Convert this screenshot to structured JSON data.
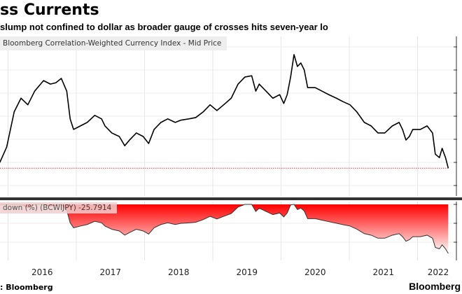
{
  "header": {
    "title": "ss Currents",
    "subtitle": "slump not confined to dollar as broader gauge of crosses hits seven-year lo"
  },
  "footer": {
    "source": ": Bloomberg",
    "brand": "Bloomberg"
  },
  "chart_data": [
    {
      "type": "line",
      "legend": "Bloomberg Correlation-Weighted Currency Index - Mid Price",
      "color": "#000000",
      "reference_line": {
        "style": "dotted",
        "color": "#e03030",
        "value": 74.2
      },
      "grid": true,
      "x_ticks": [
        "2016",
        "2017",
        "2018",
        "2019",
        "2020",
        "2021",
        "2022"
      ],
      "x": [
        2015.88,
        2015.98,
        2016.09,
        2016.19,
        2016.29,
        2016.39,
        2016.52,
        2016.62,
        2016.7,
        2016.78,
        2016.86,
        2016.91,
        2016.96,
        2017.06,
        2017.16,
        2017.27,
        2017.37,
        2017.42,
        2017.52,
        2017.63,
        2017.71,
        2017.78,
        2017.88,
        2017.98,
        2018.06,
        2018.14,
        2018.24,
        2018.34,
        2018.45,
        2018.53,
        2018.65,
        2018.75,
        2018.86,
        2018.96,
        2019.06,
        2019.16,
        2019.27,
        2019.37,
        2019.47,
        2019.57,
        2019.63,
        2019.68,
        2019.78,
        2019.88,
        2019.98,
        2020.04,
        2020.09,
        2020.14,
        2020.19,
        2020.24,
        2020.29,
        2020.34,
        2020.39,
        2020.5,
        2020.6,
        2020.7,
        2020.81,
        2020.91,
        2021.01,
        2021.11,
        2021.22,
        2021.32,
        2021.42,
        2021.52,
        2021.63,
        2021.73,
        2021.78,
        2021.83,
        2021.88,
        2021.93,
        2022.04,
        2022.14,
        2022.22,
        2022.26,
        2022.32,
        2022.36,
        2022.41,
        2022.45
      ],
      "values": [
        75.5,
        79.0,
        87.0,
        90.1,
        88.6,
        91.7,
        94.1,
        93.3,
        93.6,
        94.6,
        91.7,
        85.4,
        83.0,
        83.8,
        84.6,
        86.2,
        85.4,
        83.8,
        82.2,
        81.4,
        79.3,
        80.6,
        82.2,
        81.4,
        79.8,
        83.0,
        84.6,
        85.4,
        84.6,
        85.1,
        85.4,
        85.7,
        87.0,
        88.6,
        87.3,
        88.6,
        90.1,
        93.3,
        94.9,
        95.2,
        91.7,
        93.3,
        91.7,
        90.1,
        90.9,
        88.9,
        90.9,
        94.9,
        100.0,
        97.3,
        98.1,
        96.5,
        92.5,
        92.5,
        91.7,
        90.9,
        90.1,
        89.3,
        88.6,
        87.0,
        84.6,
        83.8,
        82.2,
        82.2,
        83.8,
        84.6,
        83.0,
        80.6,
        81.4,
        83.0,
        83.0,
        83.8,
        82.2,
        77.4,
        76.6,
        78.7,
        76.6,
        74.2
      ]
    },
    {
      "type": "area",
      "legend": "down (%) (BCWIJPY) -25.7914",
      "color": "#ff0000",
      "last_value": -25.7914,
      "ylim": [
        -27,
        0
      ],
      "values": [
        0,
        0,
        0,
        0,
        -1.7,
        0,
        0,
        -0.9,
        -0.5,
        0,
        -3.1,
        -9.7,
        -12.3,
        -11.4,
        -10.6,
        -8.9,
        -9.7,
        -11.4,
        -13.1,
        -14.0,
        -16.2,
        -14.8,
        -13.1,
        -14.0,
        -15.6,
        -12.3,
        -10.6,
        -9.7,
        -10.6,
        -10.0,
        -9.7,
        -9.4,
        -8.0,
        -6.3,
        -7.7,
        -6.3,
        -4.8,
        -1.4,
        0,
        0,
        -3.7,
        -2.0,
        -3.7,
        -5.4,
        -4.5,
        -6.6,
        -4.5,
        -0.3,
        0,
        -2.7,
        -1.9,
        -3.5,
        -7.5,
        -7.5,
        -8.3,
        -9.1,
        -9.9,
        -10.7,
        -11.4,
        -13.0,
        -15.4,
        -16.2,
        -17.8,
        -17.8,
        -16.2,
        -15.4,
        -17.0,
        -19.4,
        -18.6,
        -17.0,
        -17.0,
        -16.2,
        -17.8,
        -22.6,
        -23.4,
        -21.3,
        -23.4,
        -25.8
      ]
    }
  ]
}
